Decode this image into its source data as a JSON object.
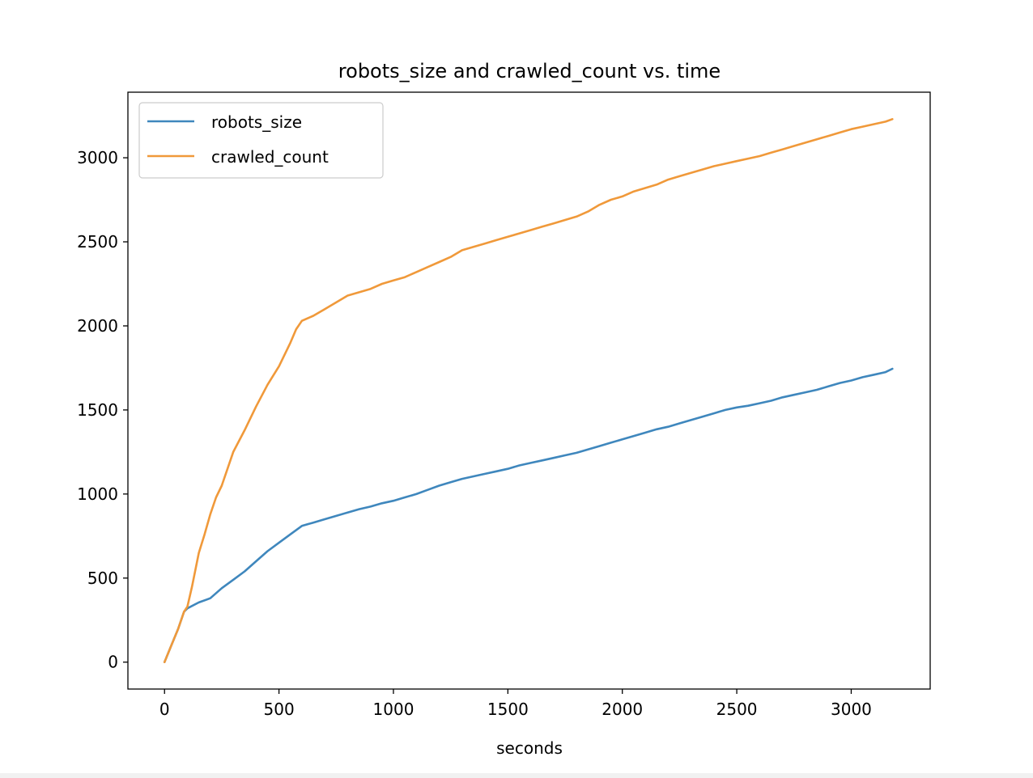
{
  "chart_data": {
    "type": "line",
    "title": "robots_size and crawled_count vs. time",
    "xlabel": "seconds",
    "ylabel": "",
    "xlim": [
      -160,
      3345
    ],
    "ylim": [
      -160,
      3390
    ],
    "xticks": [
      0,
      500,
      1000,
      1500,
      2000,
      2500,
      3000
    ],
    "yticks": [
      0,
      500,
      1000,
      1500,
      2000,
      2500,
      3000
    ],
    "xtick_labels": [
      "0",
      "500",
      "1000",
      "1500",
      "2000",
      "2500",
      "3000"
    ],
    "ytick_labels": [
      "0",
      "500",
      "1000",
      "1500",
      "2000",
      "2500",
      "3000"
    ],
    "grid": false,
    "legend_position": "top-left",
    "series": [
      {
        "name": "robots_size",
        "color": "#3f87bd",
        "x": [
          0,
          30,
          60,
          85,
          100,
          150,
          200,
          250,
          300,
          350,
          400,
          450,
          500,
          550,
          600,
          650,
          700,
          750,
          800,
          850,
          900,
          950,
          1000,
          1050,
          1100,
          1150,
          1200,
          1250,
          1300,
          1350,
          1400,
          1450,
          1500,
          1550,
          1600,
          1650,
          1700,
          1750,
          1800,
          1850,
          1900,
          1950,
          2000,
          2050,
          2100,
          2150,
          2200,
          2250,
          2300,
          2350,
          2400,
          2450,
          2500,
          2550,
          2600,
          2650,
          2700,
          2750,
          2800,
          2850,
          2900,
          2950,
          3000,
          3050,
          3100,
          3150,
          3180
        ],
        "y": [
          0,
          100,
          200,
          300,
          320,
          355,
          380,
          440,
          490,
          540,
          600,
          660,
          710,
          760,
          810,
          830,
          850,
          870,
          890,
          910,
          925,
          945,
          960,
          980,
          1000,
          1025,
          1050,
          1070,
          1090,
          1105,
          1120,
          1135,
          1150,
          1170,
          1185,
          1200,
          1215,
          1230,
          1245,
          1265,
          1285,
          1305,
          1325,
          1345,
          1365,
          1385,
          1400,
          1420,
          1440,
          1460,
          1480,
          1500,
          1515,
          1525,
          1540,
          1555,
          1575,
          1590,
          1605,
          1620,
          1640,
          1660,
          1675,
          1695,
          1710,
          1725,
          1745
        ]
      },
      {
        "name": "crawled_count",
        "color": "#f0993a",
        "x": [
          0,
          30,
          60,
          85,
          100,
          120,
          150,
          175,
          200,
          225,
          250,
          300,
          350,
          400,
          450,
          500,
          550,
          575,
          600,
          650,
          700,
          750,
          800,
          850,
          900,
          950,
          1000,
          1050,
          1100,
          1150,
          1200,
          1250,
          1300,
          1350,
          1400,
          1450,
          1500,
          1550,
          1600,
          1650,
          1700,
          1750,
          1800,
          1850,
          1900,
          1950,
          2000,
          2050,
          2100,
          2150,
          2200,
          2250,
          2300,
          2350,
          2400,
          2450,
          2500,
          2550,
          2600,
          2650,
          2700,
          2750,
          2800,
          2850,
          2900,
          2950,
          3000,
          3050,
          3100,
          3150,
          3180
        ],
        "y": [
          0,
          100,
          200,
          300,
          330,
          450,
          650,
          760,
          880,
          980,
          1050,
          1250,
          1380,
          1520,
          1650,
          1760,
          1900,
          1980,
          2030,
          2060,
          2100,
          2140,
          2180,
          2200,
          2220,
          2250,
          2270,
          2290,
          2320,
          2350,
          2380,
          2410,
          2450,
          2470,
          2490,
          2510,
          2530,
          2550,
          2570,
          2590,
          2610,
          2630,
          2650,
          2680,
          2720,
          2750,
          2770,
          2800,
          2820,
          2840,
          2870,
          2890,
          2910,
          2930,
          2950,
          2965,
          2980,
          2995,
          3010,
          3030,
          3050,
          3070,
          3090,
          3110,
          3130,
          3150,
          3170,
          3185,
          3200,
          3215,
          3230
        ]
      }
    ]
  }
}
